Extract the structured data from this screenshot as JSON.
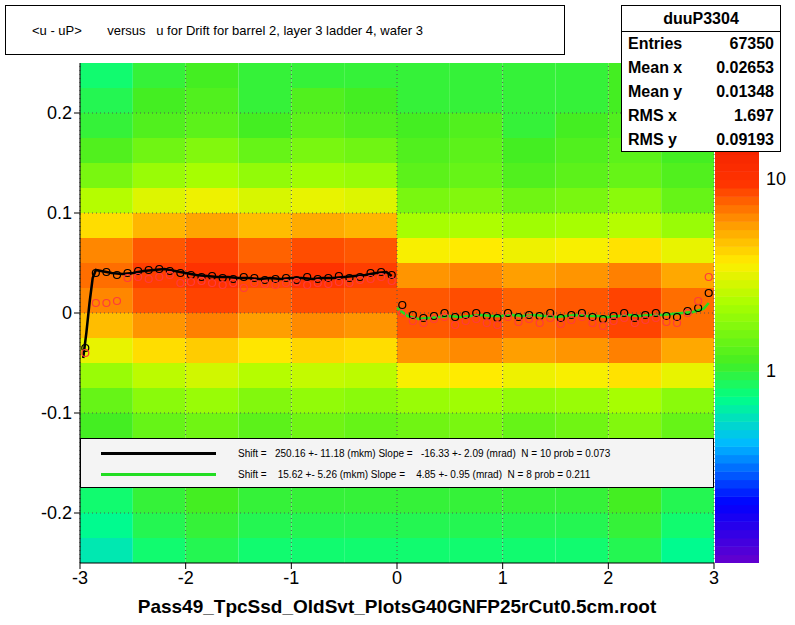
{
  "chart_data": {
    "type": "scatter",
    "title": "<u - uP>       versus   u for Drift for barrel 2, layer 3 ladder 4, wafer 3",
    "x_label": "Pass49_TpcSsd_OldSvt_PlotsG40GNFP25rCut0.5cm.root",
    "xlim": [
      -3,
      3
    ],
    "ylim": [
      -0.25,
      0.25
    ],
    "xticks": [
      -3,
      -2,
      -1,
      0,
      1,
      2,
      3
    ],
    "yticks": [
      -0.2,
      -0.1,
      0,
      0.1,
      0.2
    ],
    "grid": true,
    "legend": "bottom",
    "heatmap": {
      "x_bins": [
        -3,
        -2.5,
        -2,
        -1.5,
        -1,
        -0.5,
        0,
        0.5,
        1,
        1.5,
        2,
        2.5,
        3
      ],
      "y_bins": [
        -0.25,
        -0.225,
        -0.2,
        -0.175,
        -0.15,
        -0.125,
        -0.1,
        -0.075,
        -0.05,
        -0.025,
        0,
        0.025,
        0.05,
        0.075,
        0.1,
        0.125,
        0.15,
        0.175,
        0.2,
        0.225,
        0.25
      ],
      "cells": [
        [
          0.6,
          0.8,
          0.9,
          0.8,
          0.8,
          0.8,
          0.8,
          0.8,
          0.8,
          0.8,
          0.9,
          0.7
        ],
        [
          0.7,
          0.9,
          1,
          0.9,
          0.9,
          0.9,
          0.9,
          0.9,
          0.9,
          0.9,
          1,
          0.8
        ],
        [
          0.8,
          1,
          1.1,
          1,
          1,
          1,
          1,
          1,
          1,
          1,
          1.1,
          0.9
        ],
        [
          null,
          null,
          null,
          null,
          null,
          null,
          null,
          null,
          null,
          null,
          null,
          null
        ],
        [
          null,
          null,
          null,
          null,
          null,
          null,
          null,
          null,
          null,
          null,
          null,
          null
        ],
        [
          1.1,
          1.4,
          1.5,
          1.3,
          1.5,
          1.4,
          1.5,
          1.6,
          1.4,
          1.5,
          1.7,
          1.4
        ],
        [
          1.4,
          1.8,
          2,
          1.7,
          1.9,
          1.8,
          2,
          2.1,
          1.9,
          2,
          2.2,
          1.8
        ],
        [
          2,
          2.5,
          2.8,
          2.4,
          2.6,
          2.5,
          3.5,
          3.7,
          3.3,
          3.5,
          3.9,
          3.2
        ],
        [
          3.2,
          4,
          4.4,
          3.8,
          4.2,
          4,
          6,
          6.3,
          5.7,
          6,
          6.6,
          5.4
        ],
        [
          4.8,
          6,
          6.6,
          5.7,
          6.3,
          6,
          8,
          8.4,
          7.6,
          8,
          8.8,
          7.2
        ],
        [
          6.4,
          8,
          8.8,
          7.6,
          8.4,
          8,
          8,
          8.4,
          7.6,
          8,
          8.8,
          7.2
        ],
        [
          7.2,
          9,
          9.9,
          8.6,
          9.5,
          9,
          6,
          6.3,
          5.7,
          6,
          6.6,
          5.4
        ],
        [
          6.4,
          8,
          8.8,
          7.6,
          8.4,
          8,
          3.5,
          3.7,
          3.3,
          3.5,
          3.9,
          3.2
        ],
        [
          4,
          5,
          5.5,
          4.8,
          5.3,
          5,
          2.2,
          2.3,
          2.1,
          2.2,
          2.4,
          2
        ],
        [
          2.4,
          3,
          3.3,
          2.9,
          3.2,
          3,
          1.6,
          1.7,
          1.5,
          1.6,
          1.8,
          1.4
        ],
        [
          1.6,
          2,
          2.2,
          1.9,
          2.1,
          2,
          1.3,
          1.4,
          1.2,
          1.3,
          1.4,
          1.2
        ],
        [
          1.2,
          1.5,
          1.7,
          1.4,
          1.6,
          1.5,
          1.2,
          1.3,
          1.1,
          1.2,
          1.3,
          1.1
        ],
        [
          1,
          1.2,
          1.3,
          1.1,
          1.3,
          1.2,
          1.1,
          1.2,
          1,
          1.1,
          1.2,
          1
        ],
        [
          0.9,
          1.1,
          1.2,
          1,
          1.2,
          1.1,
          1,
          1,
          1,
          1,
          1.1,
          0.9
        ],
        [
          0.8,
          1,
          1.1,
          1,
          1,
          1,
          1,
          1,
          1,
          1,
          1.1,
          0.9
        ]
      ]
    },
    "colorbar": {
      "range": [
        0.1,
        40
      ],
      "ticks": [
        1,
        10
      ]
    },
    "series": [
      {
        "type": "scatter",
        "marker": "circle",
        "color": "#000000",
        "x": [
          -2.95,
          -2.85,
          -2.75,
          -2.65,
          -2.55,
          -2.45,
          -2.35,
          -2.25,
          -2.15,
          -2.05,
          -1.95,
          -1.85,
          -1.75,
          -1.65,
          -1.55,
          -1.45,
          -1.35,
          -1.25,
          -1.15,
          -1.05,
          -0.95,
          -0.85,
          -0.75,
          -0.65,
          -0.55,
          -0.45,
          -0.35,
          -0.25,
          -0.15,
          -0.05,
          0.05,
          0.15,
          0.25,
          0.35,
          0.45,
          0.55,
          0.65,
          0.75,
          0.85,
          0.95,
          1.05,
          1.15,
          1.25,
          1.35,
          1.45,
          1.55,
          1.65,
          1.75,
          1.85,
          1.95,
          2.05,
          2.15,
          2.25,
          2.35,
          2.45,
          2.55,
          2.65,
          2.75,
          2.85,
          2.95
        ],
        "values": [
          -0.035,
          0.04,
          0.041,
          0.038,
          0.04,
          0.042,
          0.043,
          0.044,
          0.042,
          0.04,
          0.038,
          0.036,
          0.037,
          0.035,
          0.034,
          0.036,
          0.035,
          0.033,
          0.034,
          0.035,
          0.033,
          0.036,
          0.034,
          0.035,
          0.037,
          0.035,
          0.036,
          0.04,
          0.041,
          0.038,
          0.008,
          -0.002,
          -0.005,
          -0.003,
          0.0,
          -0.004,
          -0.002,
          0.0,
          -0.003,
          -0.005,
          0.0,
          -0.004,
          -0.002,
          -0.003,
          0.0,
          -0.005,
          -0.002,
          0.0,
          -0.004,
          -0.006,
          -0.003,
          0.0,
          -0.005,
          -0.002,
          0.0,
          -0.003,
          -0.004,
          0.002,
          0.005,
          0.02
        ]
      },
      {
        "type": "scatter",
        "marker": "circle",
        "color": "#ff3b3b",
        "x": [
          -2.95,
          -2.85,
          -2.75,
          -2.65,
          -2.55,
          -2.45,
          -2.35,
          -2.25,
          -2.15,
          -2.05,
          -1.95,
          -1.85,
          -1.75,
          -1.65,
          -1.55,
          -1.45,
          -1.35,
          -1.25,
          -1.15,
          -1.05,
          -0.95,
          -0.85,
          -0.75,
          -0.65,
          -0.55,
          -0.45,
          -0.35,
          -0.25,
          -0.15,
          -0.05,
          0.05,
          0.15,
          0.25,
          0.35,
          0.45,
          0.55,
          0.65,
          0.75,
          0.85,
          0.95,
          1.05,
          1.15,
          1.25,
          1.35,
          1.45,
          1.55,
          1.65,
          1.75,
          1.85,
          1.95,
          2.05,
          2.15,
          2.25,
          2.35,
          2.45,
          2.55,
          2.65,
          2.75,
          2.85,
          2.95
        ],
        "values": [
          -0.04,
          0.01,
          0.01,
          0.012,
          0.035,
          0.036,
          0.034,
          0.036,
          0.038,
          0.03,
          0.031,
          0.032,
          0.03,
          0.028,
          0.03,
          0.025,
          0.03,
          0.029,
          0.028,
          0.03,
          0.031,
          0.028,
          0.03,
          0.029,
          0.031,
          0.03,
          0.033,
          0.034,
          0.036,
          0.032,
          0.0,
          -0.008,
          -0.01,
          -0.006,
          -0.004,
          -0.012,
          -0.008,
          -0.006,
          -0.01,
          -0.012,
          -0.004,
          -0.009,
          -0.006,
          -0.01,
          -0.005,
          -0.011,
          -0.007,
          -0.004,
          -0.01,
          -0.013,
          -0.008,
          -0.005,
          -0.01,
          -0.007,
          -0.005,
          -0.009,
          -0.01,
          0.0,
          0.012,
          0.036
        ]
      },
      {
        "type": "line",
        "line_style": "solid",
        "color": "#000000",
        "name": "Shift =   250.16 +- 11.18 (mkm) Slope =   -16.33 +- 2.09 (mrad)  N = 10 prob = 0.073",
        "x": [
          -2.97,
          -2.94,
          -2.91,
          -2.88,
          -2.85,
          -2.8,
          -2.7,
          -2.6,
          -2.5,
          -2.4,
          -2.3,
          -2.2,
          -2.1,
          -2.0,
          -1.9,
          -1.8,
          -1.7,
          -1.6,
          -1.5,
          -1.4,
          -1.3,
          -1.2,
          -1.1,
          -1.0,
          -0.9,
          -0.8,
          -0.7,
          -0.6,
          -0.5,
          -0.4,
          -0.3,
          -0.2,
          -0.1,
          -0.05
        ],
        "values": [
          -0.045,
          -0.02,
          0.01,
          0.035,
          0.043,
          0.042,
          0.04,
          0.039,
          0.04,
          0.042,
          0.043,
          0.044,
          0.042,
          0.04,
          0.038,
          0.037,
          0.036,
          0.036,
          0.035,
          0.035,
          0.034,
          0.035,
          0.034,
          0.035,
          0.035,
          0.034,
          0.035,
          0.035,
          0.036,
          0.037,
          0.038,
          0.04,
          0.041,
          0.037
        ]
      },
      {
        "type": "line",
        "line_style": "solid",
        "color": "#22dd22",
        "name": "Shift =    15.62 +- 5.26 (mkm) Slope =    4.85 +- 0.95 (mrad)  N = 8 prob = 0.211",
        "x": [
          0.0,
          0.1,
          0.2,
          0.3,
          0.4,
          0.5,
          0.6,
          0.7,
          0.8,
          0.9,
          1.0,
          1.1,
          1.2,
          1.3,
          1.4,
          1.5,
          1.6,
          1.7,
          1.8,
          1.9,
          2.0,
          2.1,
          2.2,
          2.3,
          2.4,
          2.5,
          2.6,
          2.7,
          2.8,
          2.9,
          2.95
        ],
        "values": [
          0.005,
          -0.003,
          -0.006,
          -0.005,
          -0.004,
          -0.003,
          -0.004,
          -0.003,
          -0.002,
          -0.003,
          -0.003,
          -0.002,
          -0.003,
          -0.002,
          -0.003,
          -0.004,
          -0.003,
          -0.002,
          -0.003,
          -0.003,
          -0.004,
          -0.003,
          -0.002,
          -0.003,
          -0.002,
          -0.002,
          -0.001,
          0.0,
          0.001,
          0.004,
          0.01
        ]
      }
    ],
    "stats": {
      "title": "duuP3304",
      "rows": [
        {
          "label": "Entries",
          "value": 67350
        },
        {
          "label": "Mean x",
          "value": 0.02653
        },
        {
          "label": "Mean y",
          "value": 0.01348
        },
        {
          "label": "RMS x",
          "value": 1.697
        },
        {
          "label": "RMS y",
          "value": 0.09193
        }
      ]
    }
  }
}
